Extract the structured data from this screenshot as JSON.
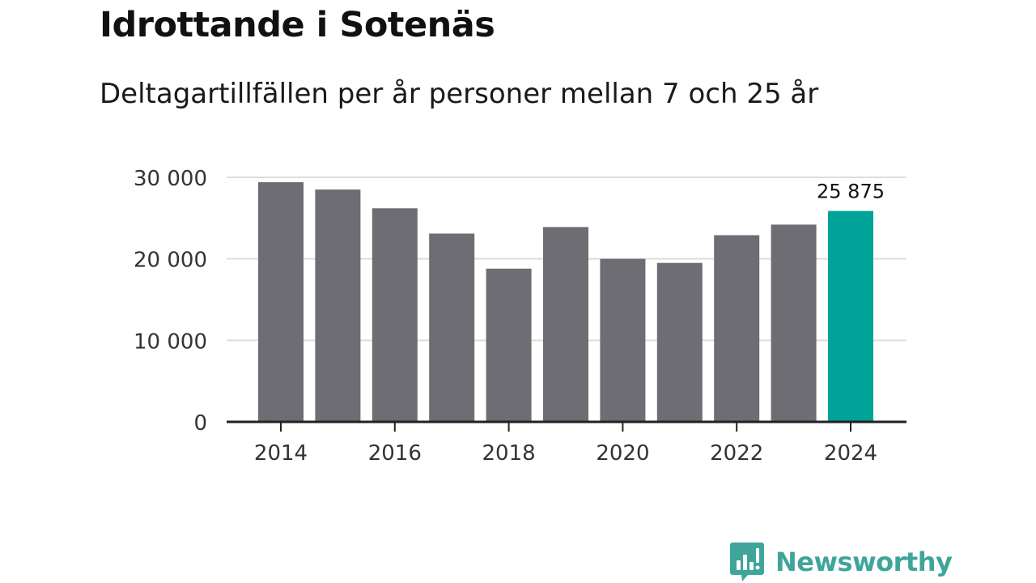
{
  "title": "Idrottande i Sotenäs",
  "subtitle": "Deltagartillfällen per år personer mellan 7 och 25 år",
  "brand": {
    "name": "Newsworthy",
    "color": "#3fa59a",
    "icon": "newsworthy-logo-icon"
  },
  "colors": {
    "bar": "#6e6d73",
    "highlight": "#00a398",
    "grid": "#dddddd",
    "axis": "#222222",
    "text": "#333333"
  },
  "chart_data": {
    "type": "bar",
    "title": "Idrottande i Sotenäs",
    "subtitle": "Deltagartillfällen per år personer mellan 7 och 25 år",
    "xlabel": "",
    "ylabel": "",
    "categories": [
      "2014",
      "2015",
      "2016",
      "2017",
      "2018",
      "2019",
      "2020",
      "2021",
      "2022",
      "2023",
      "2024"
    ],
    "values": [
      29400,
      28500,
      26200,
      23100,
      18800,
      23900,
      20000,
      19500,
      22900,
      24200,
      25875
    ],
    "highlight_index": 10,
    "ylim": [
      0,
      30000
    ],
    "yticks": [
      0,
      10000,
      20000,
      30000
    ],
    "ytick_labels": [
      "0",
      "10 000",
      "20 000",
      "30 000"
    ],
    "xtick_labels": [
      "2014",
      "2016",
      "2018",
      "2020",
      "2022",
      "2024"
    ],
    "data_labels": [
      {
        "index": 10,
        "text": "25 875"
      }
    ],
    "grid": true,
    "legend": "none"
  }
}
